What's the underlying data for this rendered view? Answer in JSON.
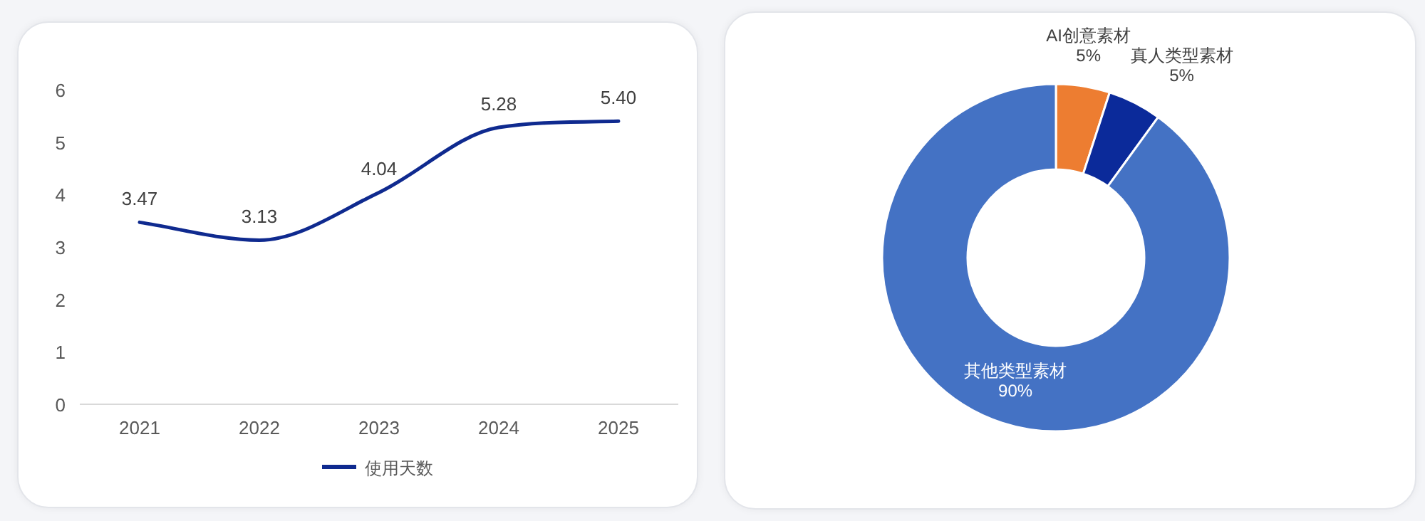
{
  "chart_data": [
    {
      "type": "line",
      "categories": [
        "2021",
        "2022",
        "2023",
        "2024",
        "2025"
      ],
      "series": [
        {
          "name": "使用天数",
          "color": "#0f2a8f",
          "values": [
            3.47,
            3.13,
            4.04,
            5.28,
            5.4
          ]
        }
      ],
      "value_labels": [
        "3.47",
        "3.13",
        "4.04",
        "5.28",
        "5.40"
      ],
      "ylim": [
        0,
        6
      ],
      "yticks": [
        0,
        1,
        2,
        3,
        4,
        5,
        6
      ],
      "legend": "bottom",
      "grid": false
    },
    {
      "type": "donut",
      "categories": [
        "AI创意素材",
        "真人类型素材",
        "其他类型素材"
      ],
      "values": [
        5,
        5,
        90
      ],
      "colors": [
        "#ed7d31",
        "#0b2a9a",
        "#4472c4"
      ],
      "value_labels": [
        "5%",
        "5%",
        "90%"
      ]
    }
  ]
}
